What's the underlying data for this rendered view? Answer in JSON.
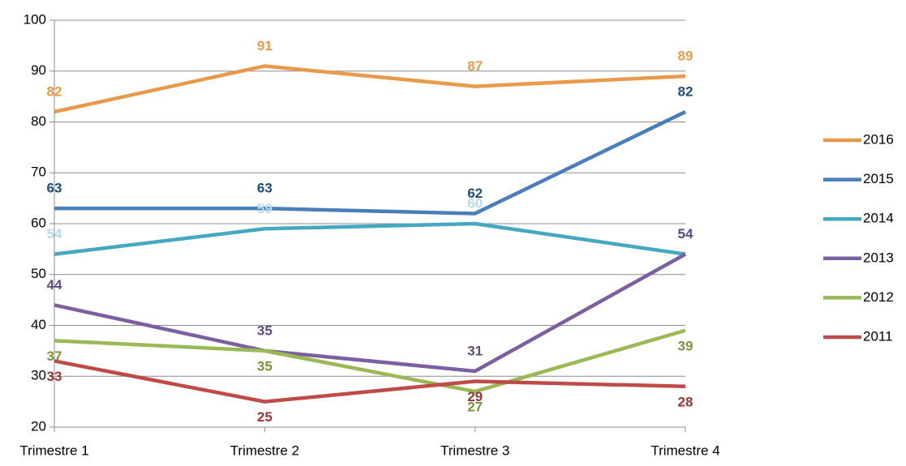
{
  "chart_data": {
    "type": "line",
    "categories": [
      "Trimestre 1",
      "Trimestre 2",
      "Trimestre 3",
      "Trimestre 4"
    ],
    "series": [
      {
        "name": "2016",
        "color": "#e8994a",
        "label_color": "#e8994a",
        "label_position": "above",
        "values": [
          82,
          91,
          87,
          89
        ]
      },
      {
        "name": "2015",
        "color": "#4a7ebb",
        "label_color": "#1f4e79",
        "label_position": "above",
        "values": [
          63,
          63,
          62,
          82
        ]
      },
      {
        "name": "2014",
        "color": "#46a8c0",
        "label_color": "#b7dde8",
        "label_position": "above",
        "values": [
          54,
          59,
          60,
          54
        ]
      },
      {
        "name": "2013",
        "color": "#7b5fa0",
        "label_color": "#5f4a7e",
        "label_position": "above",
        "values": [
          44,
          35,
          31,
          54
        ]
      },
      {
        "name": "2012",
        "color": "#98b954",
        "label_color": "#77933c",
        "label_position": "below",
        "values": [
          37,
          35,
          27,
          39
        ]
      },
      {
        "name": "2011",
        "color": "#be4b48",
        "label_color": "#943634",
        "label_position": "below",
        "values": [
          33,
          25,
          29,
          28
        ]
      }
    ],
    "ylim": [
      20,
      100
    ],
    "yticks": [
      20,
      30,
      40,
      50,
      60,
      70,
      80,
      90,
      100
    ],
    "grid": true,
    "legend": "right"
  }
}
